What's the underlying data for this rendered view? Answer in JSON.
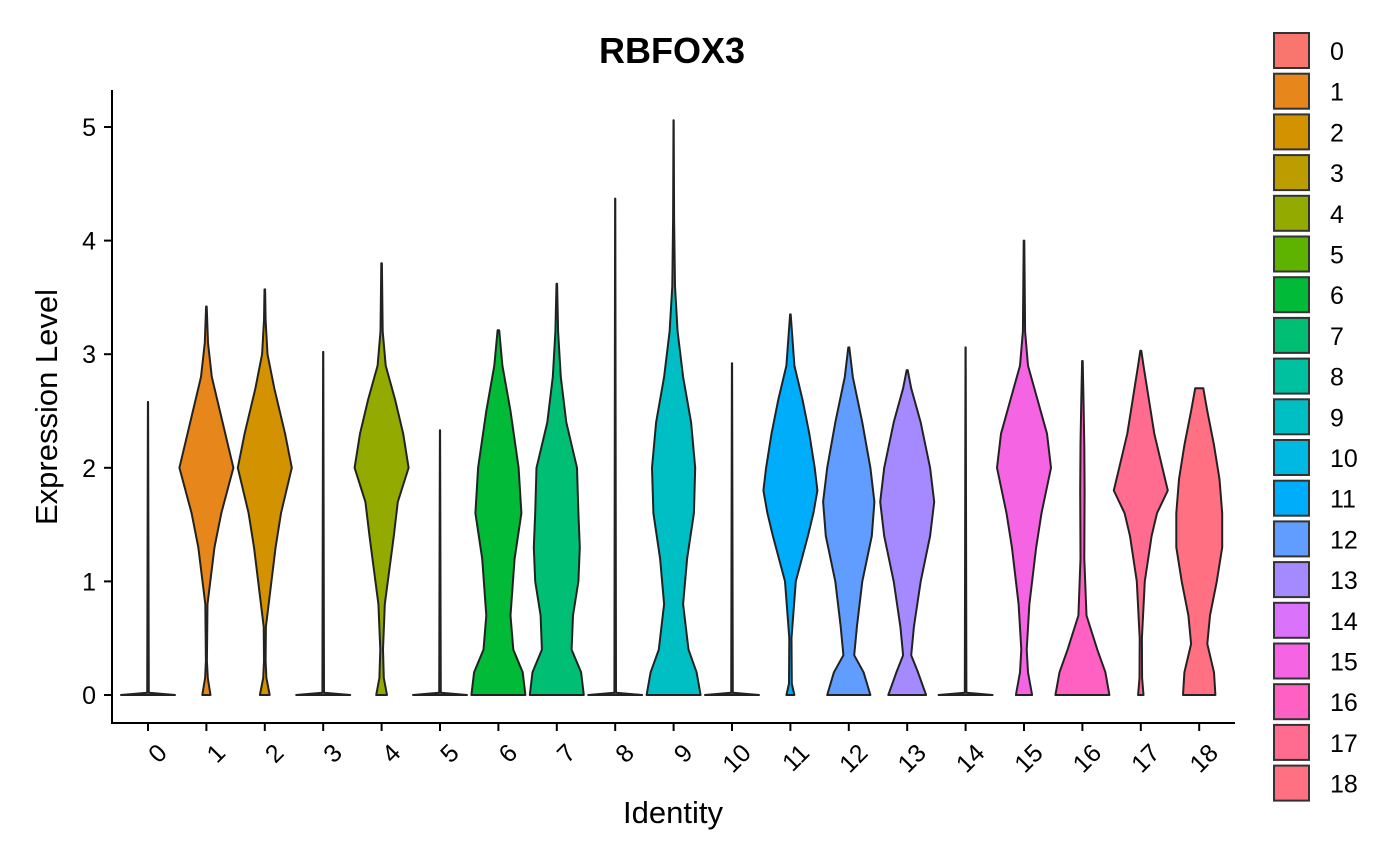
{
  "chart_data": {
    "type": "violin",
    "title": "RBFOX3",
    "xlabel": "Identity",
    "ylabel": "Expression Level",
    "ylim": [
      -0.25,
      5.35
    ],
    "yticks": [
      "0",
      "1",
      "2",
      "3",
      "4",
      "5"
    ],
    "categories": [
      "0",
      "1",
      "2",
      "3",
      "4",
      "5",
      "6",
      "7",
      "8",
      "9",
      "10",
      "11",
      "12",
      "13",
      "14",
      "15",
      "16",
      "17",
      "18"
    ],
    "colors": [
      "#F8766D",
      "#E7861A",
      "#D39200",
      "#BB9D00",
      "#93AA00",
      "#5EB300",
      "#00BA38",
      "#00BF74",
      "#00C19F",
      "#00BFC4",
      "#00B9E3",
      "#00ADFA",
      "#619CFF",
      "#A58AFF",
      "#DB72FB",
      "#F564E3",
      "#FF61C3",
      "#FF6C90",
      "#FF7083"
    ],
    "legend_position": "right",
    "grid": false,
    "violins": [
      {
        "label": "0",
        "max": 2.58,
        "width": [
          [
            0,
            1.0
          ],
          [
            0.02,
            0.03
          ],
          [
            2.58,
            0.005
          ]
        ]
      },
      {
        "label": "1",
        "max": 3.42,
        "width": [
          [
            0,
            0.15
          ],
          [
            0.15,
            0.05
          ],
          [
            0.3,
            0.02
          ],
          [
            0.8,
            0.04
          ],
          [
            1.3,
            0.3
          ],
          [
            1.6,
            0.55
          ],
          [
            2.0,
            1.0
          ],
          [
            2.4,
            0.6
          ],
          [
            2.8,
            0.2
          ],
          [
            3.1,
            0.06
          ],
          [
            3.42,
            0.01
          ]
        ]
      },
      {
        "label": "2",
        "max": 3.57,
        "width": [
          [
            0,
            0.18
          ],
          [
            0.15,
            0.06
          ],
          [
            0.3,
            0.03
          ],
          [
            0.6,
            0.04
          ],
          [
            1.3,
            0.4
          ],
          [
            1.6,
            0.6
          ],
          [
            2.0,
            1.0
          ],
          [
            2.3,
            0.75
          ],
          [
            2.7,
            0.35
          ],
          [
            3.0,
            0.1
          ],
          [
            3.3,
            0.03
          ],
          [
            3.57,
            0.01
          ]
        ]
      },
      {
        "label": "3",
        "max": 3.02,
        "width": [
          [
            0,
            1.0
          ],
          [
            0.02,
            0.03
          ],
          [
            3.02,
            0.005
          ]
        ]
      },
      {
        "label": "4",
        "max": 3.8,
        "width": [
          [
            0,
            0.2
          ],
          [
            0.15,
            0.08
          ],
          [
            0.4,
            0.05
          ],
          [
            0.8,
            0.12
          ],
          [
            1.4,
            0.45
          ],
          [
            1.7,
            0.6
          ],
          [
            2.0,
            1.0
          ],
          [
            2.3,
            0.8
          ],
          [
            2.6,
            0.5
          ],
          [
            2.9,
            0.15
          ],
          [
            3.2,
            0.04
          ],
          [
            3.8,
            0.01
          ]
        ]
      },
      {
        "label": "5",
        "max": 2.33,
        "width": [
          [
            0,
            1.0
          ],
          [
            0.02,
            0.03
          ],
          [
            2.33,
            0.005
          ]
        ]
      },
      {
        "label": "6",
        "max": 3.21,
        "width": [
          [
            0,
            1.0
          ],
          [
            0.2,
            0.9
          ],
          [
            0.4,
            0.55
          ],
          [
            0.7,
            0.45
          ],
          [
            1.2,
            0.6
          ],
          [
            1.6,
            0.85
          ],
          [
            2.0,
            0.75
          ],
          [
            2.5,
            0.45
          ],
          [
            2.9,
            0.15
          ],
          [
            3.21,
            0.03
          ]
        ]
      },
      {
        "label": "7",
        "max": 3.62,
        "width": [
          [
            0,
            1.0
          ],
          [
            0.2,
            0.9
          ],
          [
            0.4,
            0.55
          ],
          [
            0.7,
            0.6
          ],
          [
            1.0,
            0.8
          ],
          [
            1.3,
            0.85
          ],
          [
            1.6,
            0.8
          ],
          [
            2.0,
            0.75
          ],
          [
            2.4,
            0.35
          ],
          [
            2.8,
            0.15
          ],
          [
            3.2,
            0.05
          ],
          [
            3.62,
            0.01
          ]
        ]
      },
      {
        "label": "8",
        "max": 4.37,
        "width": [
          [
            0,
            1.0
          ],
          [
            0.02,
            0.03
          ],
          [
            4.37,
            0.005
          ]
        ]
      },
      {
        "label": "9",
        "max": 5.06,
        "width": [
          [
            0,
            1.0
          ],
          [
            0.2,
            0.85
          ],
          [
            0.4,
            0.55
          ],
          [
            0.8,
            0.35
          ],
          [
            1.2,
            0.5
          ],
          [
            1.6,
            0.75
          ],
          [
            2.0,
            0.8
          ],
          [
            2.4,
            0.65
          ],
          [
            2.8,
            0.35
          ],
          [
            3.2,
            0.15
          ],
          [
            3.6,
            0.05
          ],
          [
            4.2,
            0.02
          ],
          [
            5.06,
            0.005
          ]
        ]
      },
      {
        "label": "10",
        "max": 2.92,
        "width": [
          [
            0,
            1.0
          ],
          [
            0.02,
            0.03
          ],
          [
            2.92,
            0.005
          ]
        ]
      },
      {
        "label": "11",
        "max": 3.35,
        "width": [
          [
            0,
            0.15
          ],
          [
            0.1,
            0.05
          ],
          [
            0.5,
            0.04
          ],
          [
            1.0,
            0.2
          ],
          [
            1.4,
            0.65
          ],
          [
            1.6,
            0.85
          ],
          [
            1.8,
            1.0
          ],
          [
            2.0,
            0.9
          ],
          [
            2.3,
            0.7
          ],
          [
            2.6,
            0.45
          ],
          [
            2.9,
            0.15
          ],
          [
            3.35,
            0.01
          ]
        ]
      },
      {
        "label": "12",
        "max": 3.06,
        "width": [
          [
            0,
            0.8
          ],
          [
            0.2,
            0.55
          ],
          [
            0.35,
            0.2
          ],
          [
            0.6,
            0.3
          ],
          [
            1.0,
            0.5
          ],
          [
            1.4,
            0.85
          ],
          [
            1.7,
            0.95
          ],
          [
            2.0,
            0.8
          ],
          [
            2.4,
            0.5
          ],
          [
            2.8,
            0.15
          ],
          [
            3.06,
            0.02
          ]
        ]
      },
      {
        "label": "13",
        "max": 2.86,
        "width": [
          [
            0,
            0.7
          ],
          [
            0.2,
            0.4
          ],
          [
            0.35,
            0.15
          ],
          [
            0.6,
            0.25
          ],
          [
            1.0,
            0.5
          ],
          [
            1.4,
            0.85
          ],
          [
            1.7,
            1.0
          ],
          [
            2.0,
            0.85
          ],
          [
            2.4,
            0.5
          ],
          [
            2.7,
            0.15
          ],
          [
            2.86,
            0.02
          ]
        ]
      },
      {
        "label": "14",
        "max": 3.06,
        "width": [
          [
            0,
            1.0
          ],
          [
            0.02,
            0.03
          ],
          [
            3.06,
            0.005
          ]
        ]
      },
      {
        "label": "15",
        "max": 4.0,
        "width": [
          [
            0,
            0.3
          ],
          [
            0.2,
            0.15
          ],
          [
            0.4,
            0.1
          ],
          [
            0.8,
            0.2
          ],
          [
            1.3,
            0.45
          ],
          [
            1.6,
            0.65
          ],
          [
            2.0,
            1.0
          ],
          [
            2.3,
            0.85
          ],
          [
            2.6,
            0.5
          ],
          [
            2.9,
            0.15
          ],
          [
            3.2,
            0.04
          ],
          [
            4.0,
            0.01
          ]
        ]
      },
      {
        "label": "16",
        "max": 2.94,
        "width": [
          [
            0,
            1.0
          ],
          [
            0.2,
            0.85
          ],
          [
            0.4,
            0.55
          ],
          [
            0.7,
            0.15
          ],
          [
            1.2,
            0.07
          ],
          [
            1.8,
            0.08
          ],
          [
            2.2,
            0.07
          ],
          [
            2.6,
            0.04
          ],
          [
            2.94,
            0.01
          ]
        ]
      },
      {
        "label": "17",
        "max": 3.03,
        "width": [
          [
            0,
            0.1
          ],
          [
            0.15,
            0.05
          ],
          [
            0.5,
            0.04
          ],
          [
            1.0,
            0.15
          ],
          [
            1.4,
            0.4
          ],
          [
            1.6,
            0.6
          ],
          [
            1.8,
            1.0
          ],
          [
            2.0,
            0.8
          ],
          [
            2.3,
            0.5
          ],
          [
            2.6,
            0.3
          ],
          [
            2.9,
            0.1
          ],
          [
            3.03,
            0.02
          ]
        ]
      },
      {
        "label": "18",
        "max": 2.7,
        "width": [
          [
            0,
            0.6
          ],
          [
            0.2,
            0.55
          ],
          [
            0.45,
            0.3
          ],
          [
            0.7,
            0.4
          ],
          [
            1.0,
            0.65
          ],
          [
            1.3,
            0.85
          ],
          [
            1.6,
            0.85
          ],
          [
            1.9,
            0.75
          ],
          [
            2.2,
            0.55
          ],
          [
            2.5,
            0.3
          ],
          [
            2.7,
            0.15
          ]
        ]
      }
    ]
  }
}
